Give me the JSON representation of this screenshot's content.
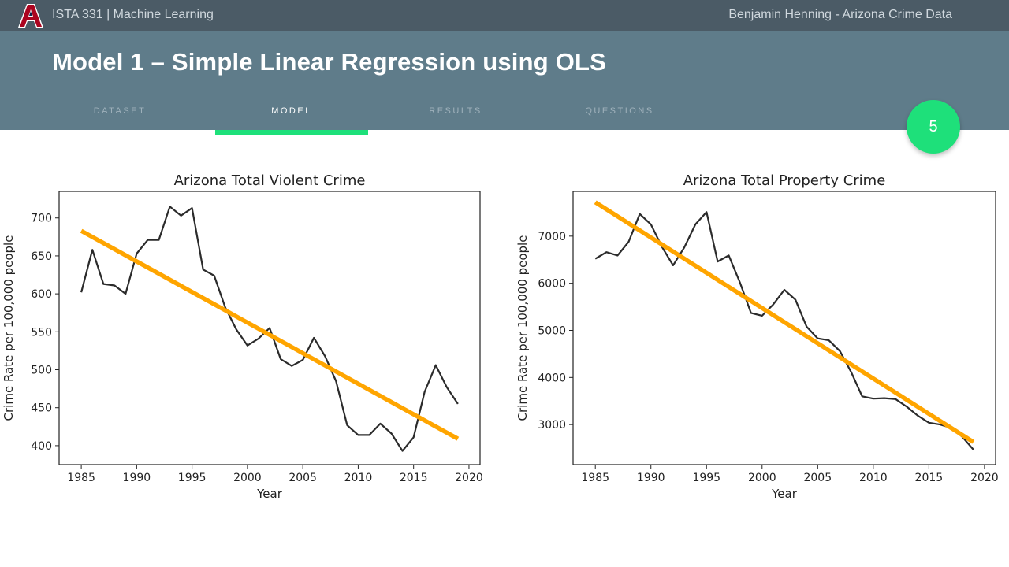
{
  "topbar": {
    "logo_icon": "university-a-logo",
    "course": "ISTA 331 | Machine Learning",
    "author": "Benjamin Henning - Arizona Crime Data"
  },
  "header": {
    "title": "Model 1 – Simple Linear Regression using OLS",
    "tabs": [
      {
        "label": "DATASET",
        "active": false
      },
      {
        "label": "MODEL",
        "active": true
      },
      {
        "label": "RESULTS",
        "active": false
      },
      {
        "label": "QUESTIONS",
        "active": false
      }
    ],
    "page_number": "5"
  },
  "colors": {
    "topbar": "#4b5b66",
    "header": "#5f7c8a",
    "accent": "#1ee07a",
    "fit_line": "#ffa500",
    "data_line": "#2b2b2b"
  },
  "chart_data": [
    {
      "type": "line",
      "title": "Arizona Total Violent Crime",
      "xlabel": "Year",
      "ylabel": "Crime Rate per 100,000 people",
      "xlim": [
        1983,
        2021
      ],
      "ylim": [
        375,
        735
      ],
      "xticks": [
        1985,
        1990,
        1995,
        2000,
        2005,
        2010,
        2015,
        2020
      ],
      "yticks": [
        400,
        450,
        500,
        550,
        600,
        650,
        700
      ],
      "grid": false,
      "series": [
        {
          "role": "data",
          "x": [
            1985,
            1986,
            1987,
            1988,
            1989,
            1990,
            1991,
            1992,
            1993,
            1994,
            1995,
            1996,
            1997,
            1998,
            1999,
            2000,
            2001,
            2002,
            2003,
            2004,
            2005,
            2006,
            2007,
            2008,
            2009,
            2010,
            2011,
            2012,
            2013,
            2014,
            2015,
            2016,
            2017,
            2018,
            2019
          ],
          "y": [
            602,
            658,
            613,
            611,
            600,
            653,
            671,
            671,
            715,
            703,
            713,
            632,
            624,
            582,
            553,
            532,
            541,
            555,
            514,
            505,
            513,
            542,
            518,
            485,
            427,
            414,
            414,
            429,
            416,
            393,
            411,
            471,
            506,
            477,
            455
          ]
        },
        {
          "role": "fit",
          "x": [
            1985,
            2019
          ],
          "y": [
            683,
            409
          ]
        }
      ]
    },
    {
      "type": "line",
      "title": "Arizona Total Property Crime",
      "xlabel": "Year",
      "ylabel": "Crime Rate per 100,000 people",
      "xlim": [
        1983,
        2021
      ],
      "ylim": [
        2150,
        7950
      ],
      "xticks": [
        1985,
        1990,
        1995,
        2000,
        2005,
        2010,
        2015,
        2020
      ],
      "yticks": [
        3000,
        4000,
        5000,
        6000,
        7000
      ],
      "grid": false,
      "series": [
        {
          "role": "data",
          "x": [
            1985,
            1986,
            1987,
            1988,
            1989,
            1990,
            1991,
            1992,
            1993,
            1994,
            1995,
            1996,
            1997,
            1998,
            1999,
            2000,
            2001,
            2002,
            2003,
            2004,
            2005,
            2006,
            2007,
            2008,
            2009,
            2010,
            2011,
            2012,
            2013,
            2014,
            2015,
            2016,
            2017,
            2018,
            2019
          ],
          "y": [
            6520,
            6660,
            6590,
            6880,
            7470,
            7250,
            6770,
            6380,
            6760,
            7250,
            7510,
            6460,
            6590,
            6020,
            5370,
            5310,
            5550,
            5860,
            5650,
            5080,
            4830,
            4790,
            4560,
            4120,
            3600,
            3550,
            3560,
            3540,
            3380,
            3190,
            3040,
            3000,
            2930,
            2740,
            2470
          ]
        },
        {
          "role": "fit",
          "x": [
            1985,
            2019
          ],
          "y": [
            7720,
            2630
          ]
        }
      ]
    }
  ]
}
